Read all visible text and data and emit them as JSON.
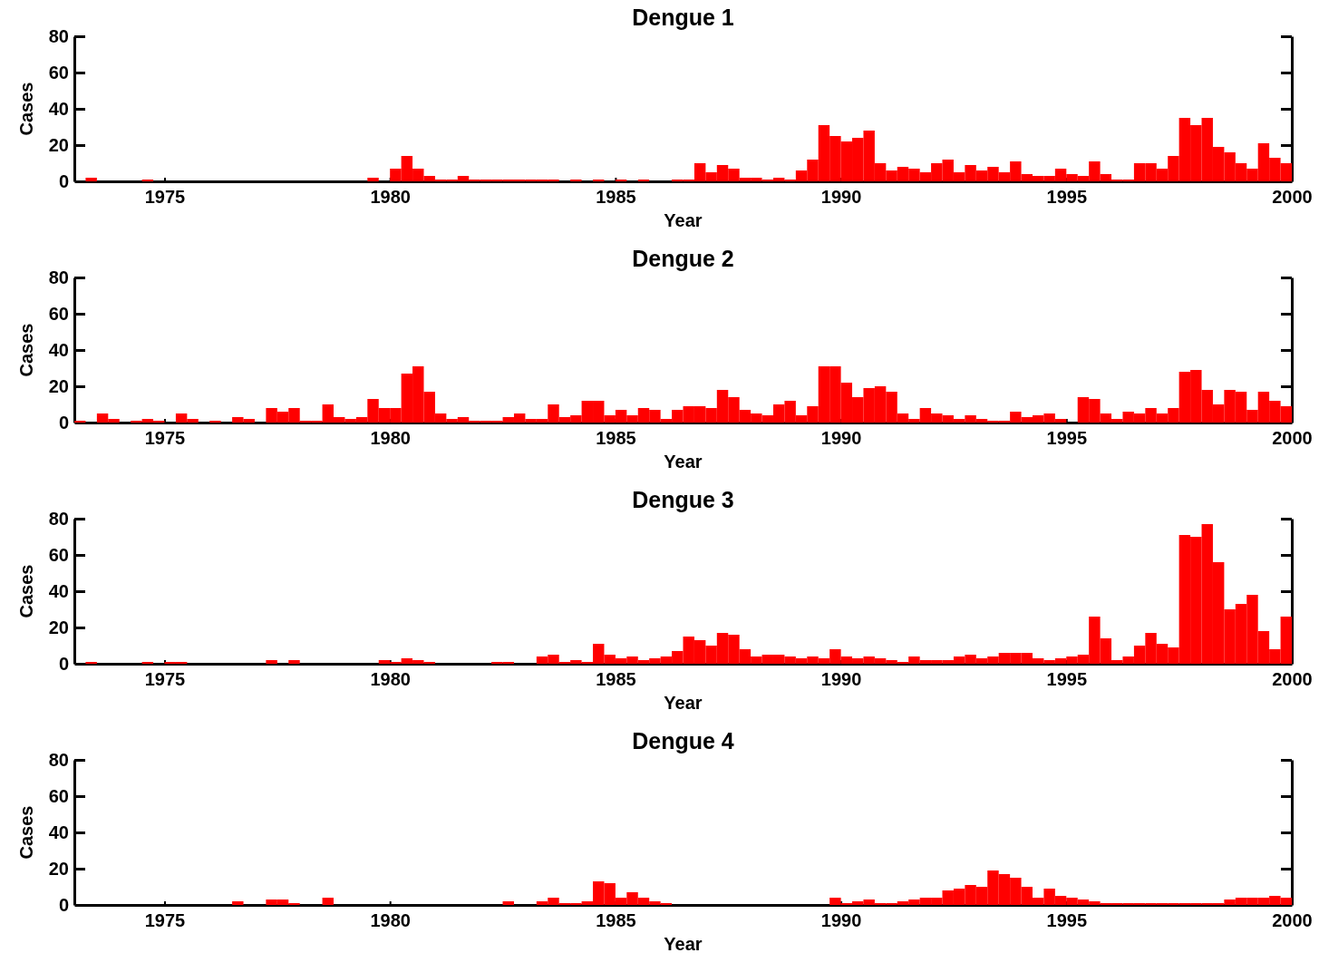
{
  "chart_data": [
    {
      "type": "histogram",
      "title": "Dengue 1",
      "xlabel": "Year",
      "ylabel": "Cases",
      "color": "#ff0000",
      "xlim": [
        1973,
        2000
      ],
      "ylim": [
        0,
        80
      ],
      "xticks": [
        1975,
        1980,
        1985,
        1990,
        1995,
        2000
      ],
      "yticks": [
        0,
        20,
        40,
        60,
        80
      ],
      "bins": [
        1973,
        1973.25,
        1973.5,
        1973.75,
        1974,
        1974.25,
        1974.5,
        1974.75,
        1975,
        1975.25,
        1975.5,
        1975.75,
        1976,
        1976.25,
        1976.5,
        1976.75,
        1977,
        1977.25,
        1977.5,
        1977.75,
        1978,
        1978.25,
        1978.5,
        1978.75,
        1979,
        1979.25,
        1979.5,
        1979.75,
        1980,
        1980.25,
        1980.5,
        1980.75,
        1981,
        1981.25,
        1981.5,
        1981.75,
        1982,
        1982.25,
        1982.5,
        1982.75,
        1983,
        1983.25,
        1983.5,
        1983.75,
        1984,
        1984.25,
        1984.5,
        1984.75,
        1985,
        1985.25,
        1985.5,
        1985.75,
        1986,
        1986.25,
        1986.5,
        1986.75,
        1987,
        1987.25,
        1987.5,
        1987.75,
        1988,
        1988.25,
        1988.5,
        1988.75,
        1989,
        1989.25,
        1989.5,
        1989.75,
        1990,
        1990.25,
        1990.5,
        1990.75,
        1991,
        1991.25,
        1991.5,
        1991.75,
        1992,
        1992.25,
        1992.5,
        1992.75,
        1993,
        1993.25,
        1993.5,
        1993.75,
        1994,
        1994.25,
        1994.5,
        1994.75,
        1995,
        1995.25,
        1995.5,
        1995.75,
        1996,
        1996.25,
        1996.5,
        1996.75,
        1997,
        1997.25,
        1997.5,
        1997.75,
        1998,
        1998.25,
        1998.5,
        1998.75,
        1999,
        1999.25,
        1999.5,
        1999.75,
        2000
      ],
      "values": [
        0,
        2,
        0,
        0,
        0,
        0,
        1,
        0,
        0,
        0,
        0,
        0,
        0,
        0,
        0,
        0,
        0,
        0,
        0,
        0,
        0,
        0,
        0,
        0,
        0,
        0,
        2,
        0,
        7,
        14,
        7,
        3,
        1,
        1,
        3,
        1,
        1,
        1,
        1,
        1,
        1,
        1,
        1,
        0,
        1,
        0,
        1,
        0,
        1,
        0,
        1,
        0,
        0,
        1,
        1,
        10,
        5,
        9,
        7,
        2,
        2,
        1,
        2,
        1,
        6,
        12,
        31,
        25,
        22,
        24,
        28,
        10,
        6,
        8,
        7,
        5,
        10,
        12,
        5,
        9,
        6,
        8,
        5,
        11,
        4,
        3,
        3,
        7,
        4,
        3,
        11,
        4,
        1,
        1,
        10,
        10,
        7,
        14,
        35,
        31,
        35,
        19,
        16,
        10,
        7,
        21,
        13,
        10
      ]
    },
    {
      "type": "histogram",
      "title": "Dengue 2",
      "xlabel": "Year",
      "ylabel": "Cases",
      "color": "#ff0000",
      "xlim": [
        1973,
        2000
      ],
      "ylim": [
        0,
        80
      ],
      "xticks": [
        1975,
        1980,
        1985,
        1990,
        1995,
        2000
      ],
      "yticks": [
        0,
        20,
        40,
        60,
        80
      ],
      "bins": [
        1973,
        1973.25,
        1973.5,
        1973.75,
        1974,
        1974.25,
        1974.5,
        1974.75,
        1975,
        1975.25,
        1975.5,
        1975.75,
        1976,
        1976.25,
        1976.5,
        1976.75,
        1977,
        1977.25,
        1977.5,
        1977.75,
        1978,
        1978.25,
        1978.5,
        1978.75,
        1979,
        1979.25,
        1979.5,
        1979.75,
        1980,
        1980.25,
        1980.5,
        1980.75,
        1981,
        1981.25,
        1981.5,
        1981.75,
        1982,
        1982.25,
        1982.5,
        1982.75,
        1983,
        1983.25,
        1983.5,
        1983.75,
        1984,
        1984.25,
        1984.5,
        1984.75,
        1985,
        1985.25,
        1985.5,
        1985.75,
        1986,
        1986.25,
        1986.5,
        1986.75,
        1987,
        1987.25,
        1987.5,
        1987.75,
        1988,
        1988.25,
        1988.5,
        1988.75,
        1989,
        1989.25,
        1989.5,
        1989.75,
        1990,
        1990.25,
        1990.5,
        1990.75,
        1991,
        1991.25,
        1991.5,
        1991.75,
        1992,
        1992.25,
        1992.5,
        1992.75,
        1993,
        1993.25,
        1993.5,
        1993.75,
        1994,
        1994.25,
        1994.5,
        1994.75,
        1995,
        1995.25,
        1995.5,
        1995.75,
        1996,
        1996.25,
        1996.5,
        1996.75,
        1997,
        1997.25,
        1997.5,
        1997.75,
        1998,
        1998.25,
        1998.5,
        1998.75,
        1999,
        1999.25,
        1999.5,
        1999.75,
        2000
      ],
      "values": [
        1,
        0,
        5,
        2,
        0,
        1,
        2,
        1,
        0,
        5,
        2,
        0,
        1,
        0,
        3,
        2,
        0,
        8,
        6,
        8,
        1,
        1,
        10,
        3,
        2,
        3,
        13,
        8,
        8,
        27,
        31,
        17,
        5,
        2,
        3,
        1,
        1,
        1,
        3,
        5,
        2,
        2,
        10,
        3,
        4,
        12,
        12,
        4,
        7,
        4,
        8,
        7,
        2,
        7,
        9,
        9,
        8,
        18,
        14,
        7,
        5,
        4,
        10,
        12,
        4,
        9,
        31,
        31,
        22,
        14,
        19,
        20,
        17,
        5,
        2,
        8,
        5,
        4,
        2,
        4,
        2,
        1,
        1,
        6,
        3,
        4,
        5,
        2,
        0,
        14,
        13,
        5,
        2,
        6,
        5,
        8,
        5,
        8,
        28,
        29,
        18,
        10,
        18,
        17,
        7,
        17,
        12,
        9
      ]
    },
    {
      "type": "histogram",
      "title": "Dengue 3",
      "xlabel": "Year",
      "ylabel": "Cases",
      "color": "#ff0000",
      "xlim": [
        1973,
        2000
      ],
      "ylim": [
        0,
        80
      ],
      "xticks": [
        1975,
        1980,
        1985,
        1990,
        1995,
        2000
      ],
      "yticks": [
        0,
        20,
        40,
        60,
        80
      ],
      "bins": [
        1973,
        1973.25,
        1973.5,
        1973.75,
        1974,
        1974.25,
        1974.5,
        1974.75,
        1975,
        1975.25,
        1975.5,
        1975.75,
        1976,
        1976.25,
        1976.5,
        1976.75,
        1977,
        1977.25,
        1977.5,
        1977.75,
        1978,
        1978.25,
        1978.5,
        1978.75,
        1979,
        1979.25,
        1979.5,
        1979.75,
        1980,
        1980.25,
        1980.5,
        1980.75,
        1981,
        1981.25,
        1981.5,
        1981.75,
        1982,
        1982.25,
        1982.5,
        1982.75,
        1983,
        1983.25,
        1983.5,
        1983.75,
        1984,
        1984.25,
        1984.5,
        1984.75,
        1985,
        1985.25,
        1985.5,
        1985.75,
        1986,
        1986.25,
        1986.5,
        1986.75,
        1987,
        1987.25,
        1987.5,
        1987.75,
        1988,
        1988.25,
        1988.5,
        1988.75,
        1989,
        1989.25,
        1989.5,
        1989.75,
        1990,
        1990.25,
        1990.5,
        1990.75,
        1991,
        1991.25,
        1991.5,
        1991.75,
        1992,
        1992.25,
        1992.5,
        1992.75,
        1993,
        1993.25,
        1993.5,
        1993.75,
        1994,
        1994.25,
        1994.5,
        1994.75,
        1995,
        1995.25,
        1995.5,
        1995.75,
        1996,
        1996.25,
        1996.5,
        1996.75,
        1997,
        1997.25,
        1997.5,
        1997.75,
        1998,
        1998.25,
        1998.5,
        1998.75,
        1999,
        1999.25,
        1999.5,
        1999.75,
        2000
      ],
      "values": [
        0,
        1,
        0,
        0,
        0,
        0,
        1,
        0,
        1,
        1,
        0,
        0,
        0,
        0,
        0,
        0,
        0,
        2,
        0,
        2,
        0,
        0,
        0,
        0,
        0,
        0,
        0,
        2,
        1,
        3,
        2,
        1,
        0,
        0,
        0,
        0,
        0,
        1,
        1,
        0,
        0,
        4,
        5,
        1,
        2,
        1,
        11,
        5,
        3,
        4,
        2,
        3,
        4,
        7,
        15,
        13,
        10,
        17,
        16,
        8,
        4,
        5,
        5,
        4,
        3,
        4,
        3,
        8,
        4,
        3,
        4,
        3,
        2,
        1,
        4,
        2,
        2,
        2,
        4,
        5,
        3,
        4,
        6,
        6,
        6,
        3,
        2,
        3,
        4,
        5,
        26,
        14,
        2,
        4,
        10,
        17,
        11,
        9,
        71,
        70,
        77,
        56,
        30,
        33,
        38,
        18,
        8,
        26
      ]
    },
    {
      "type": "histogram",
      "title": "Dengue 4",
      "xlabel": "Year",
      "ylabel": "Cases",
      "color": "#ff0000",
      "xlim": [
        1973,
        2000
      ],
      "ylim": [
        0,
        80
      ],
      "xticks": [
        1975,
        1980,
        1985,
        1990,
        1995,
        2000
      ],
      "yticks": [
        0,
        20,
        40,
        60,
        80
      ],
      "bins": [
        1973,
        1973.25,
        1973.5,
        1973.75,
        1974,
        1974.25,
        1974.5,
        1974.75,
        1975,
        1975.25,
        1975.5,
        1975.75,
        1976,
        1976.25,
        1976.5,
        1976.75,
        1977,
        1977.25,
        1977.5,
        1977.75,
        1978,
        1978.25,
        1978.5,
        1978.75,
        1979,
        1979.25,
        1979.5,
        1979.75,
        1980,
        1980.25,
        1980.5,
        1980.75,
        1981,
        1981.25,
        1981.5,
        1981.75,
        1982,
        1982.25,
        1982.5,
        1982.75,
        1983,
        1983.25,
        1983.5,
        1983.75,
        1984,
        1984.25,
        1984.5,
        1984.75,
        1985,
        1985.25,
        1985.5,
        1985.75,
        1986,
        1986.25,
        1986.5,
        1986.75,
        1987,
        1987.25,
        1987.5,
        1987.75,
        1988,
        1988.25,
        1988.5,
        1988.75,
        1989,
        1989.25,
        1989.5,
        1989.75,
        1990,
        1990.25,
        1990.5,
        1990.75,
        1991,
        1991.25,
        1991.5,
        1991.75,
        1992,
        1992.25,
        1992.5,
        1992.75,
        1993,
        1993.25,
        1993.5,
        1993.75,
        1994,
        1994.25,
        1994.5,
        1994.75,
        1995,
        1995.25,
        1995.5,
        1995.75,
        1996,
        1996.25,
        1996.5,
        1996.75,
        1997,
        1997.25,
        1997.5,
        1997.75,
        1998,
        1998.25,
        1998.5,
        1998.75,
        1999,
        1999.25,
        1999.5,
        1999.75,
        2000
      ],
      "values": [
        0,
        0,
        0,
        0,
        0,
        0,
        0,
        0,
        0,
        0,
        0,
        0,
        0,
        0,
        2,
        0,
        0,
        3,
        3,
        1,
        0,
        0,
        4,
        0,
        0,
        0,
        0,
        0,
        0,
        0,
        0,
        0,
        0,
        0,
        0,
        0,
        0,
        0,
        2,
        0,
        0,
        2,
        4,
        1,
        1,
        2,
        13,
        12,
        4,
        7,
        4,
        2,
        1,
        0,
        0,
        0,
        0,
        0,
        0,
        0,
        0,
        0,
        0,
        0,
        0,
        0,
        0,
        4,
        1,
        2,
        3,
        1,
        1,
        2,
        3,
        4,
        4,
        8,
        9,
        11,
        10,
        19,
        17,
        15,
        10,
        4,
        9,
        5,
        4,
        3,
        2,
        1,
        1,
        1,
        1,
        1,
        1,
        1,
        1,
        1,
        1,
        1,
        3,
        4,
        4,
        4,
        5,
        4
      ]
    }
  ]
}
